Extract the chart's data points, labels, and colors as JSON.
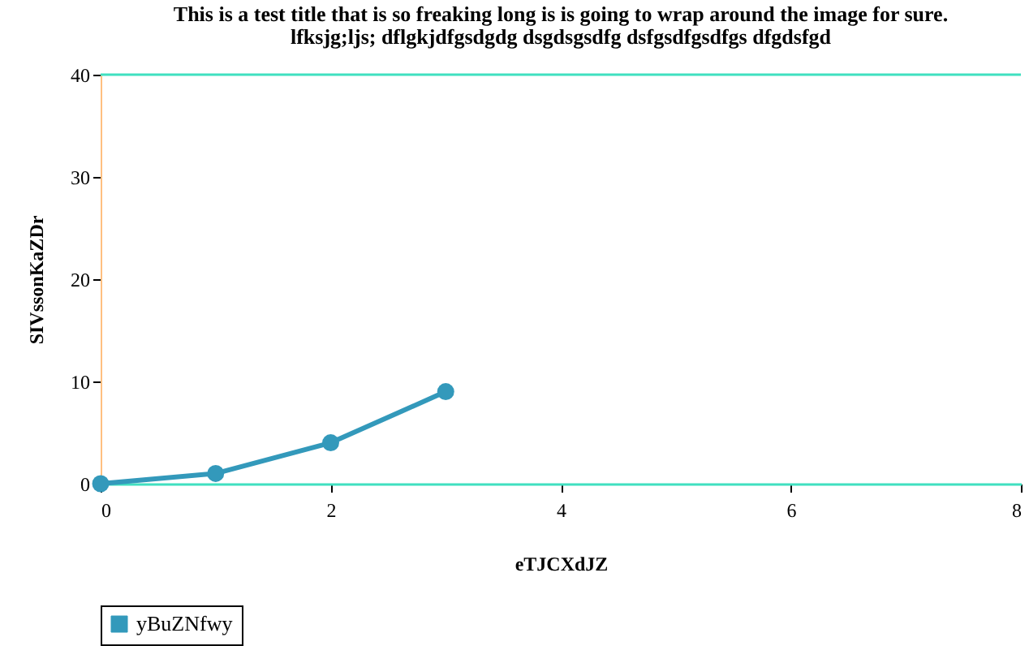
{
  "chart_data": {
    "type": "line",
    "title": "This is a test title that is so freaking long is is going to wrap around the image for sure. lfksjg;ljs; dflgkjdfgsdgdg dsgdsgsdfg dsfgsdfgsdfgs dfgdsfgd",
    "xlabel": "eTJCXdJZ",
    "ylabel": "SIVssonKaZDr",
    "x": [
      0,
      1,
      2,
      3
    ],
    "series": [
      {
        "name": "yBuZNfwy",
        "color": "#3399bb",
        "values": [
          0,
          1,
          4,
          9
        ]
      }
    ],
    "xlim": [
      0,
      8
    ],
    "xticks": [
      0,
      2,
      4,
      6,
      8
    ],
    "ylim": [
      0,
      40
    ],
    "yticks": [
      0,
      10,
      20,
      30,
      40
    ],
    "grid": false,
    "legend": "bottom",
    "marker": "circle",
    "line_style": "solid"
  }
}
